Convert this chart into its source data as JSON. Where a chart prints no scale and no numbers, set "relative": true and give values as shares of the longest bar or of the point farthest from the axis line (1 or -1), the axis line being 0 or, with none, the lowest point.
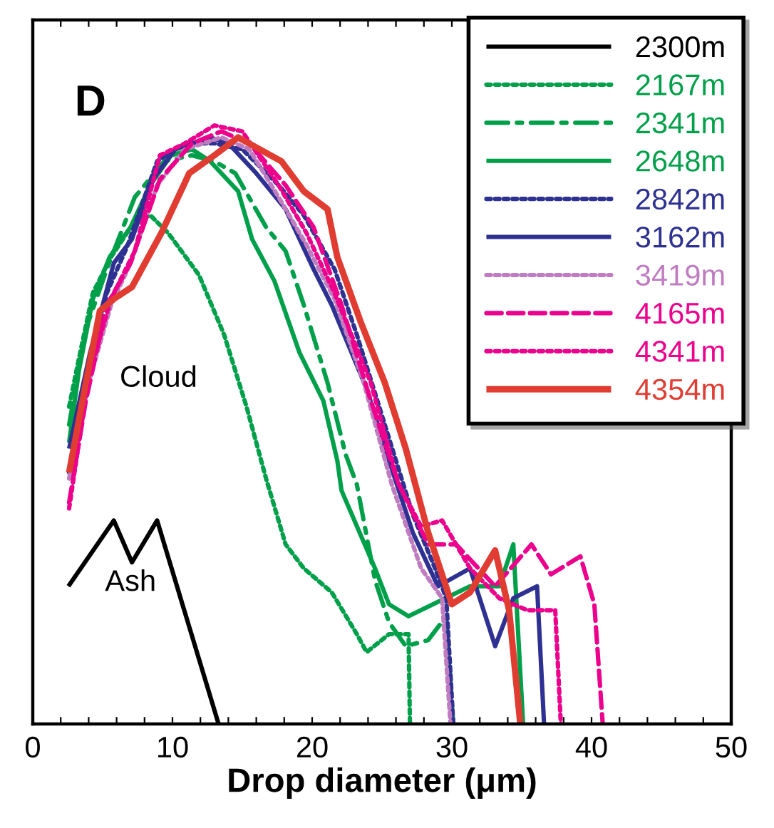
{
  "chart_data": {
    "type": "line",
    "relative": true,
    "xlabel": "Drop diameter (μm)",
    "xlim": [
      0,
      50
    ],
    "xticks": [
      0,
      {
        "value": 2,
        "label": null
      },
      {
        "value": 4,
        "label": null
      },
      {
        "value": 6,
        "label": null
      },
      {
        "value": 8,
        "label": null
      },
      10,
      {
        "value": 12,
        "label": null
      },
      {
        "value": 14,
        "label": null
      },
      {
        "value": 16,
        "label": null
      },
      {
        "value": 18,
        "label": null
      },
      20,
      {
        "value": 22,
        "label": null
      },
      {
        "value": 24,
        "label": null
      },
      {
        "value": 26,
        "label": null
      },
      {
        "value": 28,
        "label": null
      },
      30,
      {
        "value": 32,
        "label": null
      },
      {
        "value": 34,
        "label": null
      },
      {
        "value": 36,
        "label": null
      },
      {
        "value": 38,
        "label": null
      },
      40,
      {
        "value": 42,
        "label": null
      },
      {
        "value": 44,
        "label": null
      },
      {
        "value": 46,
        "label": null
      },
      {
        "value": 48,
        "label": null
      },
      50
    ],
    "legend": "top right",
    "grid": false,
    "marker": "none",
    "annotations": [
      "D",
      "Cloud",
      "Ash"
    ],
    "series": [
      {
        "name": "2300m",
        "color": "#000000",
        "line_style": "solid",
        "x": [
          2.55,
          5.8,
          7.1,
          8.9,
          13.3
        ],
        "values": [
          0.23,
          0.34,
          0.27,
          0.34,
          0
        ]
      },
      {
        "name": "2167m",
        "color": "#00a04a",
        "line_style": "dotted",
        "x": [
          2.6,
          3.3,
          4.3,
          5.6,
          7.3,
          8.4,
          9.7,
          11.9,
          13.7,
          15.3,
          16.7,
          18.1,
          19.4,
          21.4,
          23.2,
          23.9,
          25.5,
          26.9,
          27.0
        ],
        "values": [
          0.53,
          0.61,
          0.72,
          0.78,
          0.84,
          0.85,
          0.82,
          0.75,
          0.65,
          0.53,
          0.41,
          0.3,
          0.26,
          0.22,
          0.15,
          0.12,
          0.15,
          0.15,
          0
        ]
      },
      {
        "name": "2341m",
        "color": "#00a04a",
        "line_style": "dashdot",
        "x": [
          2.6,
          3.8,
          5.3,
          7.3,
          9.4,
          11.4,
          13.0,
          14.5,
          16.7,
          18.1,
          19.4,
          21.1,
          22.4,
          23.2,
          24.5,
          25.5,
          26.7,
          28.3,
          29.6,
          30.1
        ],
        "values": [
          0.5,
          0.66,
          0.76,
          0.88,
          0.94,
          0.95,
          0.94,
          0.92,
          0.83,
          0.79,
          0.7,
          0.57,
          0.45,
          0.4,
          0.24,
          0.17,
          0.13,
          0.14,
          0.18,
          0
        ]
      },
      {
        "name": "2648m",
        "color": "#00a04a",
        "line_style": "solid",
        "x": [
          2.6,
          3.3,
          4.3,
          5.5,
          7.0,
          8.4,
          9.9,
          11.4,
          12.7,
          14.7,
          15.7,
          17.3,
          19.1,
          20.8,
          21.8,
          22.1,
          24.5,
          25.5,
          26.9,
          31.3,
          33.4,
          34.4,
          35.1
        ],
        "values": [
          0.47,
          0.59,
          0.71,
          0.78,
          0.83,
          0.9,
          0.95,
          0.96,
          0.94,
          0.89,
          0.81,
          0.74,
          0.62,
          0.54,
          0.44,
          0.39,
          0.26,
          0.2,
          0.18,
          0.23,
          0.23,
          0.3,
          0
        ]
      },
      {
        "name": "2842m",
        "color": "#2e3192",
        "line_style": "dotted",
        "x": [
          2.6,
          3.8,
          5.3,
          6.8,
          8.9,
          10.9,
          13.0,
          15.0,
          17.6,
          19.4,
          21.6,
          23.2,
          25.2,
          27.2,
          28.8,
          29.6,
          30.1
        ],
        "values": [
          0.42,
          0.57,
          0.72,
          0.8,
          0.94,
          0.97,
          0.97,
          0.96,
          0.9,
          0.85,
          0.76,
          0.65,
          0.5,
          0.35,
          0.26,
          0.21,
          0
        ]
      },
      {
        "name": "3162m",
        "color": "#2e3192",
        "line_style": "solid",
        "x": [
          2.6,
          4.1,
          5.8,
          7.1,
          8.6,
          10.2,
          12.7,
          14.0,
          16.0,
          18.1,
          20.1,
          21.4,
          23.9,
          25.5,
          27.2,
          29.0,
          31.3,
          33.1,
          34.4,
          36.1,
          36.6
        ],
        "values": [
          0.46,
          0.62,
          0.77,
          0.81,
          0.91,
          0.96,
          0.98,
          0.97,
          0.92,
          0.86,
          0.76,
          0.7,
          0.56,
          0.44,
          0.32,
          0.23,
          0.26,
          0.13,
          0.21,
          0.23,
          0
        ]
      },
      {
        "name": "3419m",
        "color": "#c07cc0",
        "line_style": "dotted",
        "x": [
          2.6,
          4.0,
          5.6,
          7.0,
          8.9,
          10.9,
          13.5,
          15.5,
          17.6,
          19.6,
          21.6,
          23.7,
          25.7,
          27.8,
          29.3,
          29.9
        ],
        "values": [
          0.41,
          0.57,
          0.7,
          0.77,
          0.9,
          0.96,
          0.98,
          0.96,
          0.88,
          0.8,
          0.71,
          0.57,
          0.4,
          0.26,
          0.21,
          0
        ]
      },
      {
        "name": "4165m",
        "color": "#ec008c",
        "line_style": "dashed",
        "x": [
          2.6,
          3.8,
          5.3,
          7.0,
          9.1,
          11.4,
          13.5,
          15.5,
          18.1,
          20.1,
          22.1,
          24.2,
          26.2,
          28.3,
          30.3,
          33.1,
          35.7,
          37.1,
          39.2,
          40.2,
          40.8
        ],
        "values": [
          0.37,
          0.54,
          0.7,
          0.77,
          0.91,
          0.97,
          0.99,
          0.97,
          0.9,
          0.83,
          0.7,
          0.54,
          0.4,
          0.3,
          0.3,
          0.23,
          0.3,
          0.25,
          0.28,
          0.2,
          0
        ]
      },
      {
        "name": "4341m",
        "color": "#ec008c",
        "line_style": "dotted",
        "x": [
          2.6,
          4.0,
          5.6,
          7.3,
          9.1,
          10.9,
          13.0,
          15.0,
          17.6,
          19.6,
          21.6,
          24.2,
          26.2,
          27.8,
          29.3,
          31.3,
          33.4,
          35.4,
          37.4,
          37.8
        ],
        "values": [
          0.36,
          0.58,
          0.71,
          0.79,
          0.95,
          0.97,
          1.0,
          0.99,
          0.9,
          0.82,
          0.72,
          0.57,
          0.4,
          0.33,
          0.34,
          0.26,
          0.21,
          0.19,
          0.19,
          0
        ]
      },
      {
        "name": "4354m",
        "color": "#e03c31",
        "line_style": "solid",
        "x": [
          2.6,
          3.8,
          4.8,
          5.8,
          7.1,
          9.2,
          11.2,
          13.0,
          14.7,
          17.8,
          19.4,
          21.1,
          21.8,
          23.5,
          25.2,
          26.7,
          28.3,
          30.0,
          31.3,
          33.1,
          34.1,
          34.9
        ],
        "values": [
          0.42,
          0.57,
          0.69,
          0.71,
          0.73,
          0.82,
          0.92,
          0.95,
          0.98,
          0.94,
          0.89,
          0.86,
          0.78,
          0.67,
          0.57,
          0.46,
          0.32,
          0.2,
          0.22,
          0.29,
          0.19,
          0
        ]
      }
    ]
  }
}
